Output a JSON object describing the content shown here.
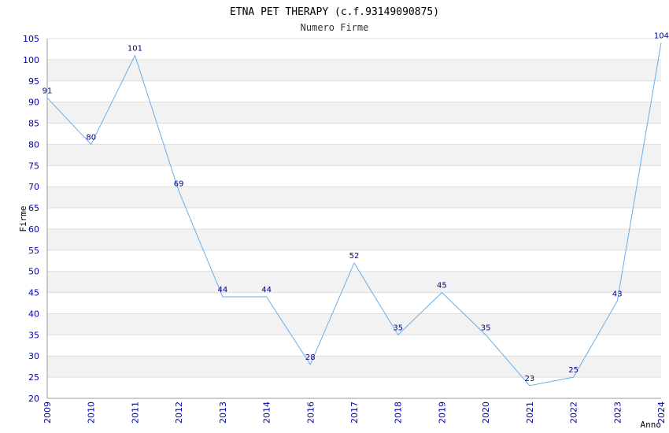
{
  "chart_data": {
    "type": "line",
    "title": "ETNA PET THERAPY (c.f.93149090875)",
    "subtitle": "Numero Firme",
    "xlabel": "Anno",
    "ylabel": "Firme",
    "ylim": [
      20,
      105
    ],
    "ytick_step": 5,
    "grid": true,
    "categories": [
      "2009",
      "2010",
      "2011",
      "2012",
      "2013",
      "2014",
      "2016",
      "2017",
      "2018",
      "2019",
      "2020",
      "2021",
      "2022",
      "2023",
      "2024"
    ],
    "series": [
      {
        "values": [
          91,
          80,
          101,
          69,
          44,
          44,
          28,
          52,
          35,
          45,
          35,
          23,
          25,
          43,
          104
        ],
        "color": "#6aaee8"
      }
    ],
    "colors": {
      "tick_text": "#0000aa",
      "data_label": "#000080",
      "band": "#f2f2f2",
      "gridline": "#dddddd"
    }
  }
}
